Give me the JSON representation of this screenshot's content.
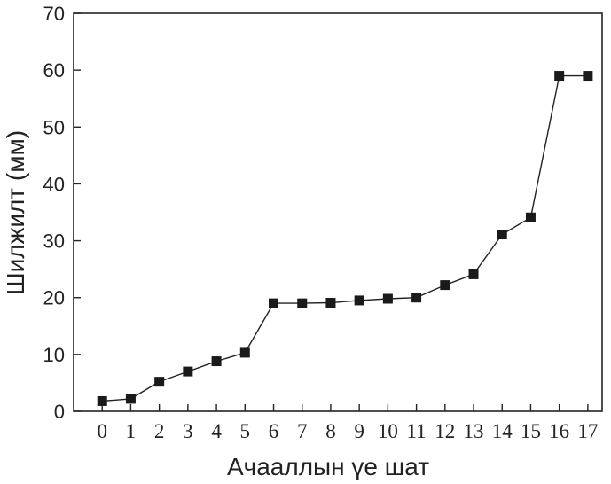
{
  "chart_data": {
    "type": "line",
    "title": "",
    "xlabel": "Ачааллын үе шат",
    "ylabel": "Шилжилт (мм)",
    "xlim": [
      -1,
      17.5
    ],
    "ylim": [
      0,
      70
    ],
    "x_ticks": [
      0,
      1,
      2,
      3,
      4,
      5,
      6,
      7,
      8,
      9,
      10,
      11,
      12,
      13,
      14,
      15,
      16,
      17
    ],
    "y_ticks": [
      0,
      10,
      20,
      30,
      40,
      50,
      60,
      70
    ],
    "grid": false,
    "marker": "square",
    "series": [
      {
        "x": [
          0,
          1,
          2,
          3,
          4,
          5,
          6,
          7,
          8,
          9,
          10,
          11,
          12,
          13,
          14,
          15,
          16,
          17
        ],
        "y": [
          1.8,
          2.2,
          5.2,
          7.0,
          8.8,
          10.3,
          19.0,
          19.0,
          19.1,
          19.5,
          19.8,
          20.0,
          22.2,
          24.1,
          31.1,
          34.1,
          59.0,
          59.0
        ]
      }
    ]
  }
}
